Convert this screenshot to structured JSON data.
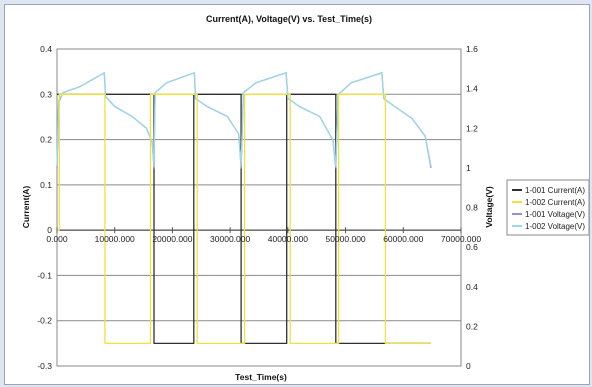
{
  "chart_data": {
    "type": "line",
    "title": "Current(A), Voltage(V) vs. Test_Time(s)",
    "xlabel": "Test_Time(s)",
    "ylabel": "Current(A)",
    "y2label": "Voltage(V)",
    "xlim": [
      0,
      70000
    ],
    "ylim": [
      -0.3,
      0.4
    ],
    "y2lim": [
      0,
      1.6
    ],
    "x_ticks": [
      "0.000",
      "10000.000",
      "20000.000",
      "30000.000",
      "40000.000",
      "50000.000",
      "60000.000",
      "70000.000"
    ],
    "y_ticks": [
      "-0.3",
      "-0.2",
      "-0.1",
      "0",
      "0.1",
      "0.2",
      "0.3",
      "0.4"
    ],
    "y2_ticks": [
      "0",
      "0.2",
      "0.4",
      "0.6",
      "0.8",
      "1",
      "1.2",
      "1.4",
      "1.6"
    ],
    "grid": true,
    "legend_position": "right",
    "colors": {
      "current_1": "#303030",
      "current_2": "#f0e040",
      "voltage_1": "#9a8fd0",
      "voltage_2": "#9ad8e8"
    },
    "series": [
      {
        "name": "1-001 Current(A)",
        "axis": "left",
        "x": [
          0,
          400,
          400,
          16800,
          16800,
          23700,
          23700,
          31900,
          31900,
          39800,
          39800,
          48300,
          48300,
          56500,
          56500,
          64800
        ],
        "y": [
          0.3,
          0.3,
          0.3,
          0.3,
          -0.25,
          -0.25,
          0.3,
          0.3,
          -0.25,
          -0.25,
          0.3,
          0.3,
          -0.25,
          -0.25,
          -0.25,
          -0.25
        ]
      },
      {
        "name": "1-002 Current(A)",
        "axis": "left",
        "x": [
          0,
          400,
          400,
          8300,
          8300,
          16200,
          16200,
          24300,
          24300,
          32500,
          32500,
          40400,
          40400,
          48800,
          48800,
          56900,
          56900,
          64800
        ],
        "y": [
          0.0,
          0.0,
          0.3,
          0.3,
          -0.25,
          -0.25,
          0.3,
          0.3,
          -0.25,
          -0.25,
          0.3,
          0.3,
          -0.25,
          -0.25,
          0.3,
          0.3,
          -0.25,
          -0.25
        ]
      },
      {
        "name": "1-001 Voltage(V)",
        "axis": "right",
        "x": [
          0,
          300,
          1000,
          4000,
          8200,
          8400,
          10000,
          13000,
          15500,
          16500,
          16800,
          17000,
          19000,
          23800,
          24000,
          26000,
          29500,
          31500,
          31900,
          32300,
          34500,
          39700,
          40000,
          42000,
          45500,
          47800,
          48300,
          48700,
          51000,
          56300,
          56600,
          58500,
          61500,
          63800,
          64800
        ],
        "y": [
          1.0,
          1.33,
          1.38,
          1.41,
          1.48,
          1.36,
          1.31,
          1.26,
          1.2,
          1.13,
          1.0,
          1.38,
          1.43,
          1.48,
          1.35,
          1.31,
          1.26,
          1.17,
          1.0,
          1.38,
          1.43,
          1.48,
          1.35,
          1.31,
          1.26,
          1.14,
          1.0,
          1.37,
          1.43,
          1.48,
          1.35,
          1.31,
          1.25,
          1.16,
          1.0
        ]
      },
      {
        "name": "1-002 Voltage(V)",
        "axis": "right",
        "x": [
          0,
          300,
          1000,
          4000,
          8200,
          8400,
          10000,
          13000,
          15500,
          16500,
          16800,
          17000,
          19000,
          23800,
          24000,
          26000,
          29500,
          31500,
          31900,
          32300,
          34500,
          39700,
          40000,
          42000,
          45500,
          47800,
          48300,
          48700,
          51000,
          56300,
          56600,
          58500,
          61500,
          63800,
          64800
        ],
        "y": [
          1.01,
          1.34,
          1.38,
          1.41,
          1.48,
          1.36,
          1.31,
          1.26,
          1.2,
          1.13,
          1.01,
          1.38,
          1.43,
          1.48,
          1.35,
          1.31,
          1.26,
          1.17,
          1.01,
          1.38,
          1.43,
          1.48,
          1.35,
          1.31,
          1.26,
          1.14,
          1.01,
          1.37,
          1.43,
          1.48,
          1.35,
          1.31,
          1.25,
          1.16,
          1.01
        ]
      }
    ]
  }
}
